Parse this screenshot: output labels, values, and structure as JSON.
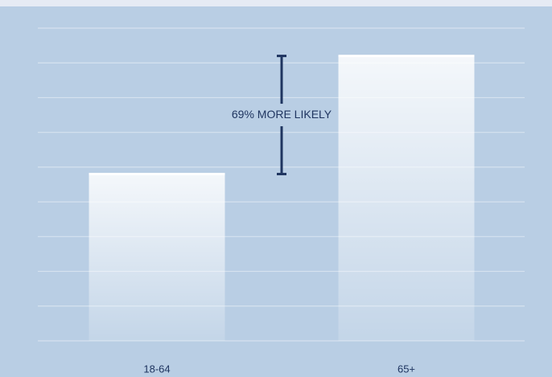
{
  "chart_data": {
    "type": "bar",
    "categories": [
      "18-64",
      "65+"
    ],
    "values": [
      4.8,
      8.2
    ],
    "color": "#ffffff",
    "ylim": [
      0,
      9
    ],
    "yticks": [
      0,
      1,
      2,
      3,
      4,
      5,
      6,
      7,
      8,
      9
    ],
    "grid": true,
    "annotation": "69% MORE LIKELY"
  }
}
